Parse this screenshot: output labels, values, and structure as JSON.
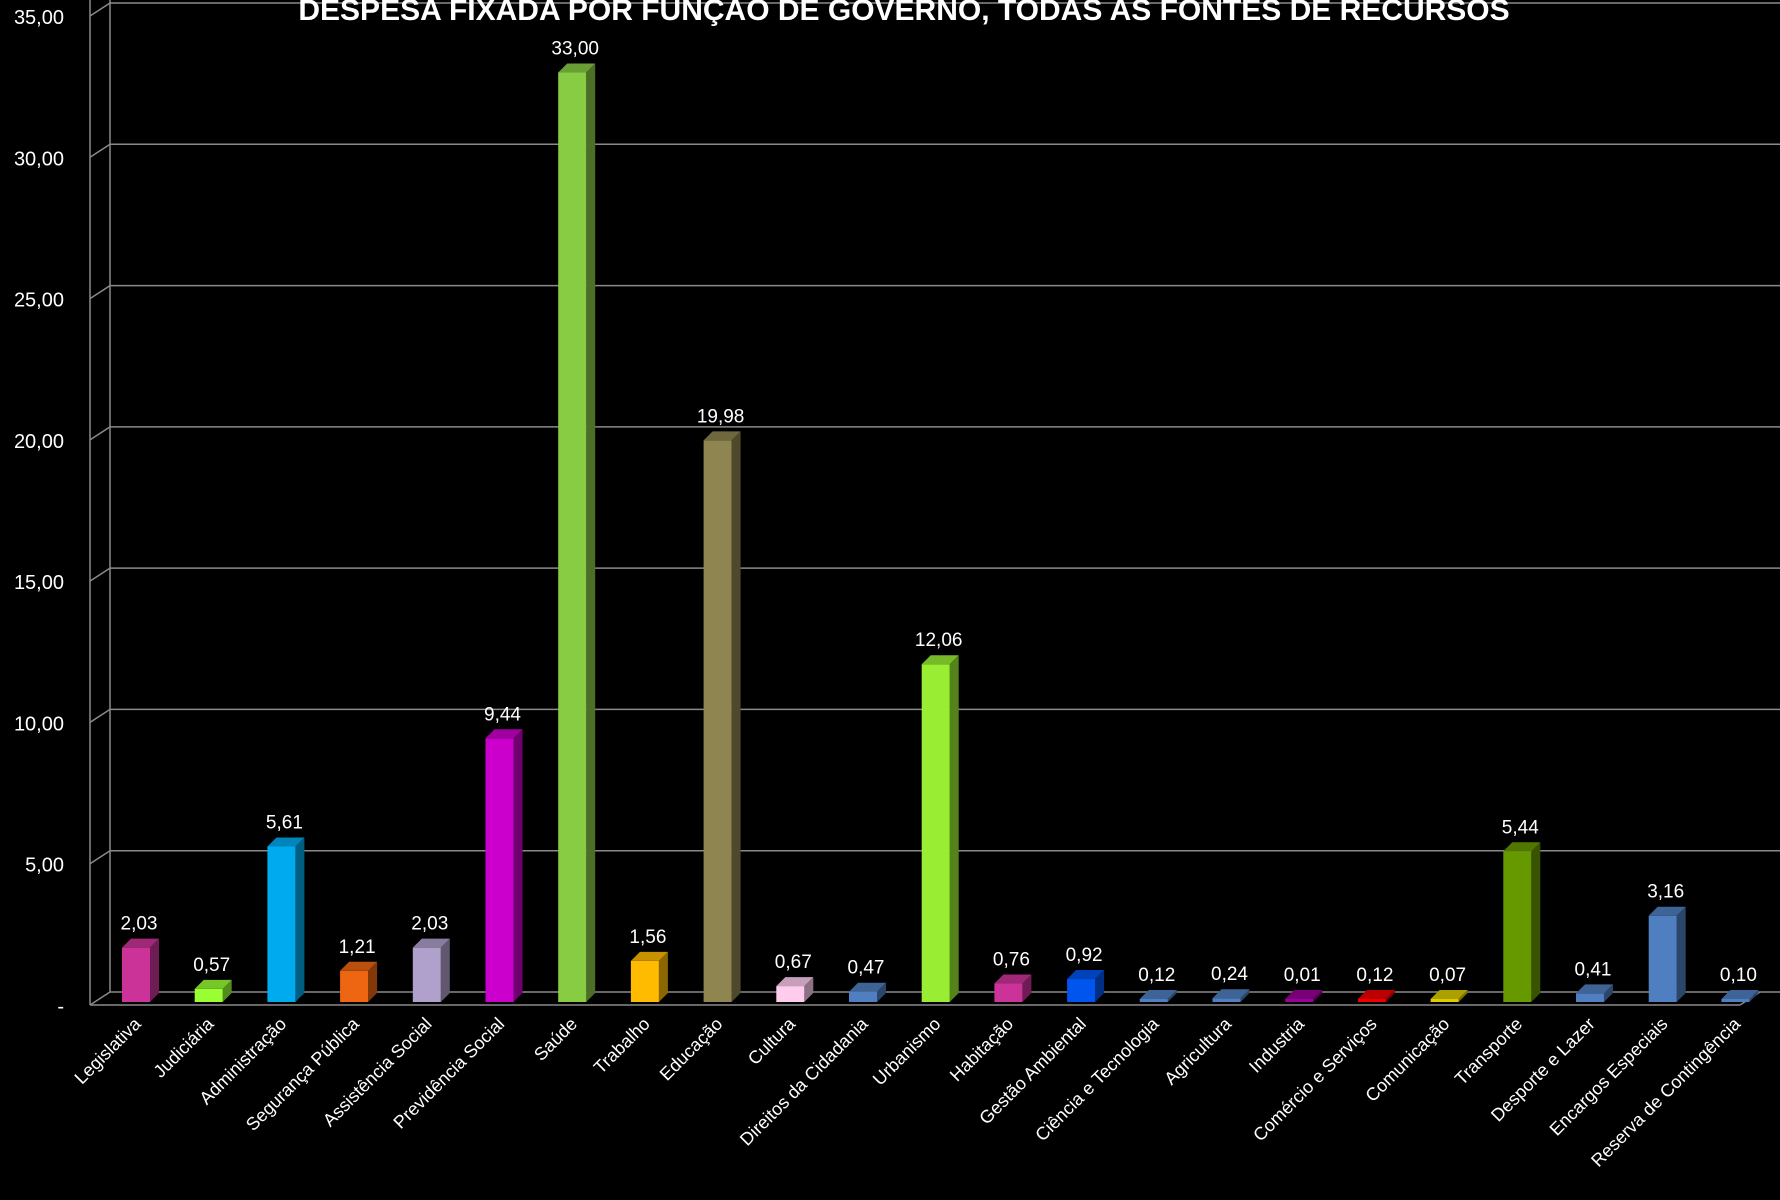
{
  "chart_data": {
    "type": "bar",
    "title": "DESPESA FIXADA POR FUNÇÃO DE GOVERNO, TODAS AS FONTES DE RECURSOS",
    "xlabel": "",
    "ylabel": "",
    "ylim": [
      0,
      35
    ],
    "yticks": [
      0,
      5,
      10,
      15,
      20,
      25,
      30,
      35
    ],
    "ytick_labels": [
      "-",
      "5,00",
      "10,00",
      "15,00",
      "20,00",
      "25,00",
      "30,00",
      "35,00"
    ],
    "grid": true,
    "legend": "none",
    "background": "#000000",
    "categories": [
      "Legislativa",
      "Judiciária",
      "Administração",
      "Segurança Pública",
      "Assistência Social",
      "Previdência Social",
      "Saúde",
      "Trabalho",
      "Educação",
      "Cultura",
      "Direitos da Cidadania",
      "Urbanismo",
      "Habitação",
      "Gestão Ambiental",
      "Ciência e Tecnologia",
      "Agricultura",
      "Industria",
      "Comércio e Serviços",
      "Comunicação",
      "Transporte",
      "Desporte e Lazer",
      "Encargos Especiais",
      "Reserva de Contingência"
    ],
    "values": [
      2.03,
      0.57,
      5.61,
      1.21,
      2.03,
      9.44,
      33.0,
      1.56,
      19.98,
      0.67,
      0.47,
      12.06,
      0.76,
      0.92,
      0.12,
      0.24,
      0.01,
      0.12,
      0.07,
      5.44,
      0.41,
      3.16,
      0.1
    ],
    "data_labels": [
      "2,03",
      "0,57",
      "5,61",
      "1,21",
      "2,03",
      "9,44",
      "33,00",
      "1,56",
      "19,98",
      "0,67",
      "0,47",
      "12,06",
      "0,76",
      "0,92",
      "0,12",
      "0,24",
      "0,01",
      "0,12",
      "0,07",
      "5,44",
      "0,41",
      "3,16",
      "0,10"
    ],
    "colors": [
      "#cc3399",
      "#99ff33",
      "#00aaee",
      "#ee6611",
      "#b0a0cc",
      "#cc00cc",
      "#88cc44",
      "#ffbb00",
      "#8e8550",
      "#ffccee",
      "#4f7fc0",
      "#99ee33",
      "#cc3399",
      "#0055ee",
      "#4f7fc0",
      "#4f7fc0",
      "#990099",
      "#ee0000",
      "#ddcc00",
      "#669900",
      "#4f7fc0",
      "#4f7fc0",
      "#4f7fc0"
    ]
  }
}
